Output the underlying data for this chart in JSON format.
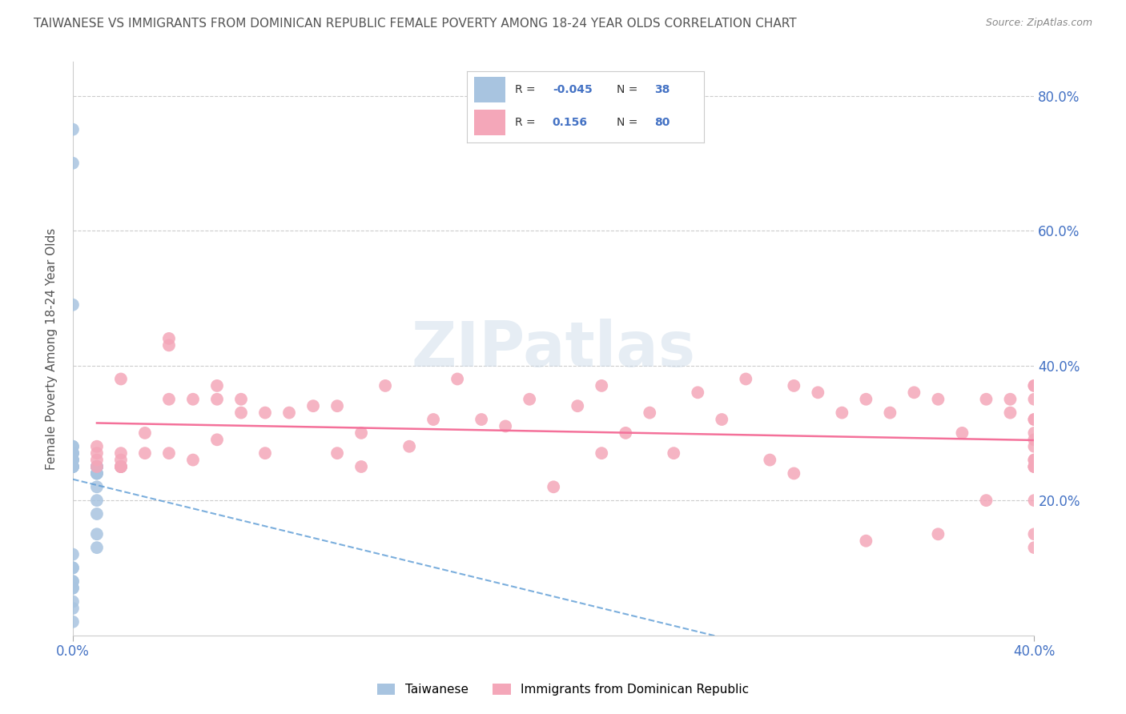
{
  "title": "TAIWANESE VS IMMIGRANTS FROM DOMINICAN REPUBLIC FEMALE POVERTY AMONG 18-24 YEAR OLDS CORRELATION CHART",
  "source": "Source: ZipAtlas.com",
  "ylabel": "Female Poverty Among 18-24 Year Olds",
  "x_lim": [
    0.0,
    0.4
  ],
  "y_lim": [
    0.0,
    0.85
  ],
  "color_taiwanese": "#a8c4e0",
  "color_dominican": "#f4a7b9",
  "color_line_taiwanese": "#5b9bd5",
  "color_line_dominican": "#f4719a",
  "taiwanese_x": [
    0.0,
    0.0,
    0.0,
    0.0,
    0.0,
    0.0,
    0.0,
    0.0,
    0.0,
    0.0,
    0.0,
    0.0,
    0.0,
    0.0,
    0.0,
    0.02,
    0.01,
    0.01,
    0.01,
    0.01,
    0.01,
    0.01,
    0.01,
    0.01,
    0.01,
    0.01,
    0.01,
    0.01,
    0.0,
    0.0,
    0.0,
    0.0,
    0.0,
    0.0,
    0.0,
    0.0,
    0.0,
    0.0
  ],
  "taiwanese_y": [
    0.75,
    0.7,
    0.49,
    0.28,
    0.28,
    0.27,
    0.27,
    0.27,
    0.26,
    0.26,
    0.26,
    0.25,
    0.25,
    0.25,
    0.25,
    0.25,
    0.25,
    0.25,
    0.25,
    0.25,
    0.24,
    0.24,
    0.24,
    0.22,
    0.2,
    0.18,
    0.15,
    0.13,
    0.12,
    0.1,
    0.1,
    0.08,
    0.08,
    0.07,
    0.07,
    0.05,
    0.04,
    0.02
  ],
  "dominican_x": [
    0.01,
    0.01,
    0.01,
    0.01,
    0.02,
    0.02,
    0.02,
    0.02,
    0.02,
    0.02,
    0.03,
    0.03,
    0.04,
    0.04,
    0.04,
    0.04,
    0.05,
    0.05,
    0.06,
    0.06,
    0.06,
    0.07,
    0.07,
    0.08,
    0.08,
    0.09,
    0.1,
    0.11,
    0.11,
    0.12,
    0.12,
    0.13,
    0.14,
    0.15,
    0.16,
    0.17,
    0.18,
    0.19,
    0.2,
    0.21,
    0.22,
    0.22,
    0.23,
    0.24,
    0.25,
    0.26,
    0.27,
    0.28,
    0.29,
    0.3,
    0.3,
    0.31,
    0.32,
    0.33,
    0.33,
    0.34,
    0.35,
    0.36,
    0.36,
    0.37,
    0.38,
    0.38,
    0.39,
    0.39,
    0.4,
    0.4,
    0.4,
    0.4,
    0.4,
    0.4,
    0.4,
    0.4,
    0.4,
    0.4,
    0.4,
    0.4,
    0.4,
    0.4,
    0.4,
    0.4
  ],
  "dominican_y": [
    0.26,
    0.27,
    0.25,
    0.28,
    0.38,
    0.26,
    0.27,
    0.25,
    0.25,
    0.25,
    0.3,
    0.27,
    0.44,
    0.43,
    0.27,
    0.35,
    0.26,
    0.35,
    0.37,
    0.35,
    0.29,
    0.33,
    0.35,
    0.27,
    0.33,
    0.33,
    0.34,
    0.27,
    0.34,
    0.25,
    0.3,
    0.37,
    0.28,
    0.32,
    0.38,
    0.32,
    0.31,
    0.35,
    0.22,
    0.34,
    0.27,
    0.37,
    0.3,
    0.33,
    0.27,
    0.36,
    0.32,
    0.38,
    0.26,
    0.37,
    0.24,
    0.36,
    0.33,
    0.35,
    0.14,
    0.33,
    0.36,
    0.15,
    0.35,
    0.3,
    0.2,
    0.35,
    0.33,
    0.35,
    0.28,
    0.13,
    0.29,
    0.2,
    0.37,
    0.25,
    0.32,
    0.35,
    0.3,
    0.32,
    0.25,
    0.26,
    0.15,
    0.37,
    0.25,
    0.26
  ],
  "legend_r1_label": "R = ",
  "legend_r1_val": "-0.045",
  "legend_n1_label": "N = ",
  "legend_n1_val": "38",
  "legend_r2_label": "R =  ",
  "legend_r2_val": "0.156",
  "legend_n2_label": "N = ",
  "legend_n2_val": "80",
  "label_taiwanese": "Taiwanese",
  "label_dominican": "Immigrants from Dominican Republic"
}
